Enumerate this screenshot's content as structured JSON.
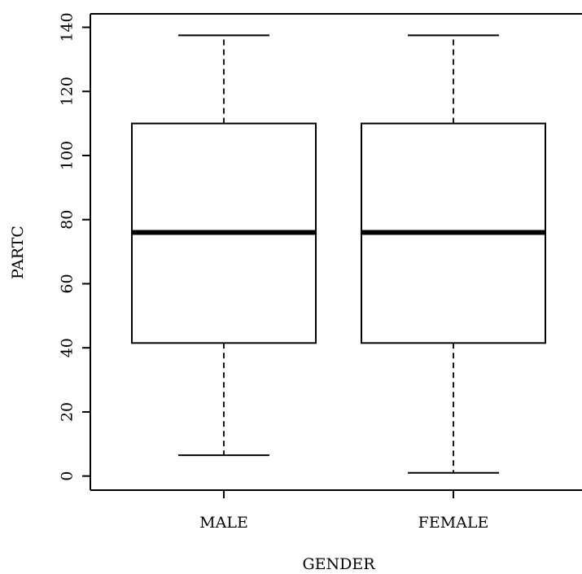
{
  "chart_data": {
    "type": "boxplot",
    "xlabel": "GENDER",
    "ylabel": "PARTC",
    "ylim": [
      -4.4,
      144.2
    ],
    "yticks": [
      0,
      20,
      40,
      60,
      80,
      100,
      120,
      140
    ],
    "categories": [
      "MALE",
      "FEMALE"
    ],
    "boxes": [
      {
        "category": "MALE",
        "min": 6.5,
        "q1": 41.5,
        "median": 76,
        "q3": 110,
        "max": 137.5
      },
      {
        "category": "FEMALE",
        "min": 1,
        "q1": 41.5,
        "median": 76,
        "q3": 110,
        "max": 137.5
      }
    ],
    "grid": false,
    "legend": "none"
  },
  "colors": {
    "line": "#000000",
    "fill": "#ffffff",
    "background": "#ffffff"
  }
}
